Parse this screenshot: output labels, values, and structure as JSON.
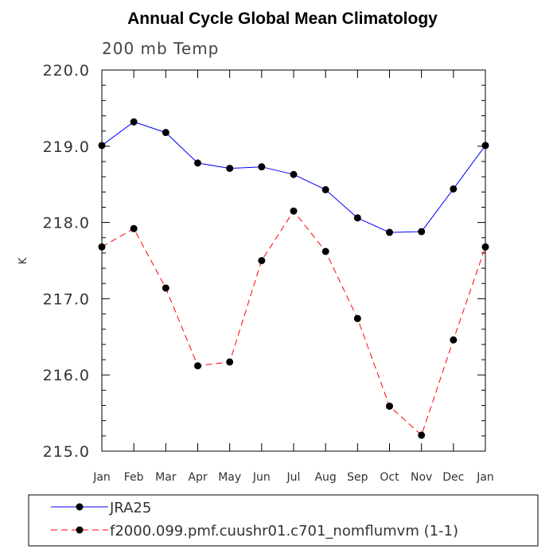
{
  "chart_data": {
    "type": "line",
    "title": "Annual Cycle Global Mean Climatology",
    "subtitle": "200 mb Temp",
    "xlabel": "",
    "ylabel": "K",
    "categories": [
      "Jan",
      "Feb",
      "Mar",
      "Apr",
      "May",
      "Jun",
      "Jul",
      "Aug",
      "Sep",
      "Oct",
      "Nov",
      "Dec",
      "Jan"
    ],
    "ylim": [
      215.0,
      220.0
    ],
    "yticks": [
      "215.0",
      "216.0",
      "217.0",
      "218.0",
      "219.0",
      "220.0"
    ],
    "grid": false,
    "legend_placement": "bottom",
    "series": [
      {
        "name": "JRA25",
        "color": "#0000ff",
        "style": "solid",
        "values": [
          219.01,
          219.32,
          219.18,
          218.78,
          218.71,
          218.73,
          218.63,
          218.43,
          218.06,
          217.87,
          217.88,
          218.44,
          219.01
        ]
      },
      {
        "name": "f2000.099.pmf.cuushr01.c701_nomflumvm (1-1)",
        "color": "#ff0000",
        "style": "dashed",
        "values": [
          217.68,
          217.92,
          217.14,
          216.12,
          216.17,
          217.5,
          218.15,
          217.62,
          216.74,
          215.59,
          215.21,
          216.46,
          217.68
        ]
      }
    ]
  }
}
